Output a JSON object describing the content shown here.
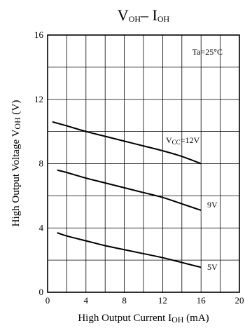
{
  "chart_data": {
    "type": "line",
    "title": {
      "base": "V",
      "sub1": "OH",
      "dash": "– I",
      "sub2": "OH"
    },
    "xlabel": {
      "base": "High Output Current  I",
      "sub": "OH",
      "unit": "  (mA)"
    },
    "ylabel": {
      "base": "High Output Voltage  V",
      "sub": "OH",
      "unit": "  (V)"
    },
    "xlim": [
      0,
      20
    ],
    "ylim": [
      0,
      16
    ],
    "xticks": [
      "0",
      "4",
      "8",
      "12",
      "16",
      "20"
    ],
    "yticks": [
      "0",
      "4",
      "8",
      "12",
      "16"
    ],
    "grid": true,
    "annotation": "Ta=25°C",
    "series": [
      {
        "name": "VCC=12V",
        "label_base": "V",
        "label_sub": "CC",
        "label_rest": "=12V",
        "x": [
          0.5,
          2,
          4,
          6,
          8,
          10,
          12,
          14,
          16
        ],
        "y": [
          10.6,
          10.35,
          10.0,
          9.7,
          9.4,
          9.1,
          8.8,
          8.45,
          8.0
        ]
      },
      {
        "name": "9V",
        "label_base": "9V",
        "label_sub": "",
        "label_rest": "",
        "x": [
          1,
          2,
          4,
          6,
          8,
          10,
          12,
          14,
          16
        ],
        "y": [
          7.6,
          7.45,
          7.1,
          6.8,
          6.5,
          6.2,
          5.9,
          5.5,
          5.1
        ]
      },
      {
        "name": "5V",
        "label_base": "5V",
        "label_sub": "",
        "label_rest": "",
        "x": [
          1,
          2,
          4,
          6,
          8,
          10,
          12,
          14,
          16
        ],
        "y": [
          3.7,
          3.5,
          3.2,
          2.9,
          2.65,
          2.4,
          2.15,
          1.85,
          1.55
        ]
      }
    ]
  }
}
